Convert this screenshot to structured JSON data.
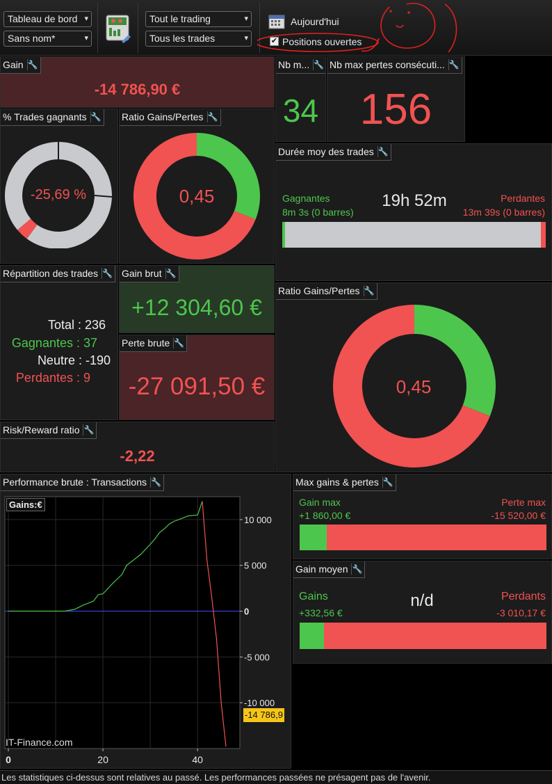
{
  "toolbar": {
    "dashboard_select": "Tableau de bord",
    "name_select": "Sans nom*",
    "scope_select": "Tout le trading",
    "trades_select": "Tous les trades",
    "today_label": "Aujourd'hui",
    "open_positions_label": "Positions ouvertes",
    "open_positions_checked": true
  },
  "gain": {
    "title": "Gain",
    "value": "-14 786,90 €"
  },
  "nb_m": {
    "title": "Nb m...",
    "value": "34"
  },
  "nb_max_pertes": {
    "title": "Nb max pertes consécuti...",
    "value": "156"
  },
  "pct_gagnants": {
    "title": "% Trades gagnants",
    "value": "-25,69 %"
  },
  "ratio_small": {
    "title": "Ratio Gains/Pertes",
    "value": "0,45"
  },
  "duree": {
    "title": "Durée moy des trades",
    "center": "19h 52m",
    "gagnantes_label": "Gagnantes",
    "gagnantes_value": "8m 3s (0 barres)",
    "perdantes_label": "Perdantes",
    "perdantes_value": "13m 39s (0 barres)"
  },
  "repartition": {
    "title": "Répartition des trades",
    "total": "Total : 236",
    "gagnantes": "Gagnantes : 37",
    "neutre": "Neutre : -190",
    "perdantes": "Perdantes : 9"
  },
  "gain_brut": {
    "title": "Gain brut",
    "value": "+12 304,60 €"
  },
  "perte_brute": {
    "title": "Perte brute",
    "value": "-27 091,50 €"
  },
  "ratio_big": {
    "title": "Ratio Gains/Pertes",
    "value": "0,45"
  },
  "risk_reward": {
    "title": "Risk/Reward ratio",
    "value": "-2,22"
  },
  "performance": {
    "title": "Performance brute : Transactions",
    "legend": "Gains:€",
    "watermark": "IT-Finance.com",
    "last_value": "-14 786,9"
  },
  "max_gains": {
    "title": "Max gains & pertes",
    "gain_label": "Gain max",
    "gain_value": "+1 860,00 €",
    "perte_label": "Perte max",
    "perte_value": "-15 520,00 €"
  },
  "gain_moyen": {
    "title": "Gain moyen",
    "center": "n/d",
    "gains_label": "Gains",
    "gains_value": "+332,56 €",
    "perdants_label": "Perdants",
    "perdants_value": "-3 010,17 €"
  },
  "footer": "Les statistiques ci-dessus sont relatives au passé. Les performances passées ne présagent pas de l'avenir.",
  "colors": {
    "green": "#4dc64d",
    "red": "#f15252",
    "grey": "#c8cacd",
    "neutral_bg": "#1c1c1c"
  },
  "chart_data": {
    "type": "line",
    "series": [
      {
        "name": "Gains:€",
        "x": [
          0,
          5,
          10,
          12,
          14,
          16,
          18,
          19,
          20,
          22,
          24,
          25,
          26,
          28,
          30,
          31,
          32,
          33,
          34,
          35,
          36,
          37,
          38,
          40,
          41,
          42,
          43,
          44,
          45,
          46
        ],
        "values": [
          0,
          0,
          0,
          0,
          200,
          700,
          1100,
          1800,
          1900,
          3000,
          4000,
          5000,
          5400,
          6200,
          7300,
          7900,
          8600,
          9000,
          9500,
          9800,
          10000,
          10200,
          10400,
          10500,
          12000,
          5500,
          1500,
          -3000,
          -10000,
          -14786.9
        ]
      }
    ],
    "xlim": [
      0,
      46
    ],
    "ylim": [
      -15000,
      12500
    ],
    "x_ticks": [
      0,
      20,
      40
    ],
    "y_ticks": [
      10000,
      5000,
      0,
      -5000,
      -10000
    ],
    "y_tick_labels": [
      "10 000",
      "5 000",
      "0",
      "-5 000",
      "-10 000"
    ],
    "grid": true,
    "legend": "top-left"
  }
}
